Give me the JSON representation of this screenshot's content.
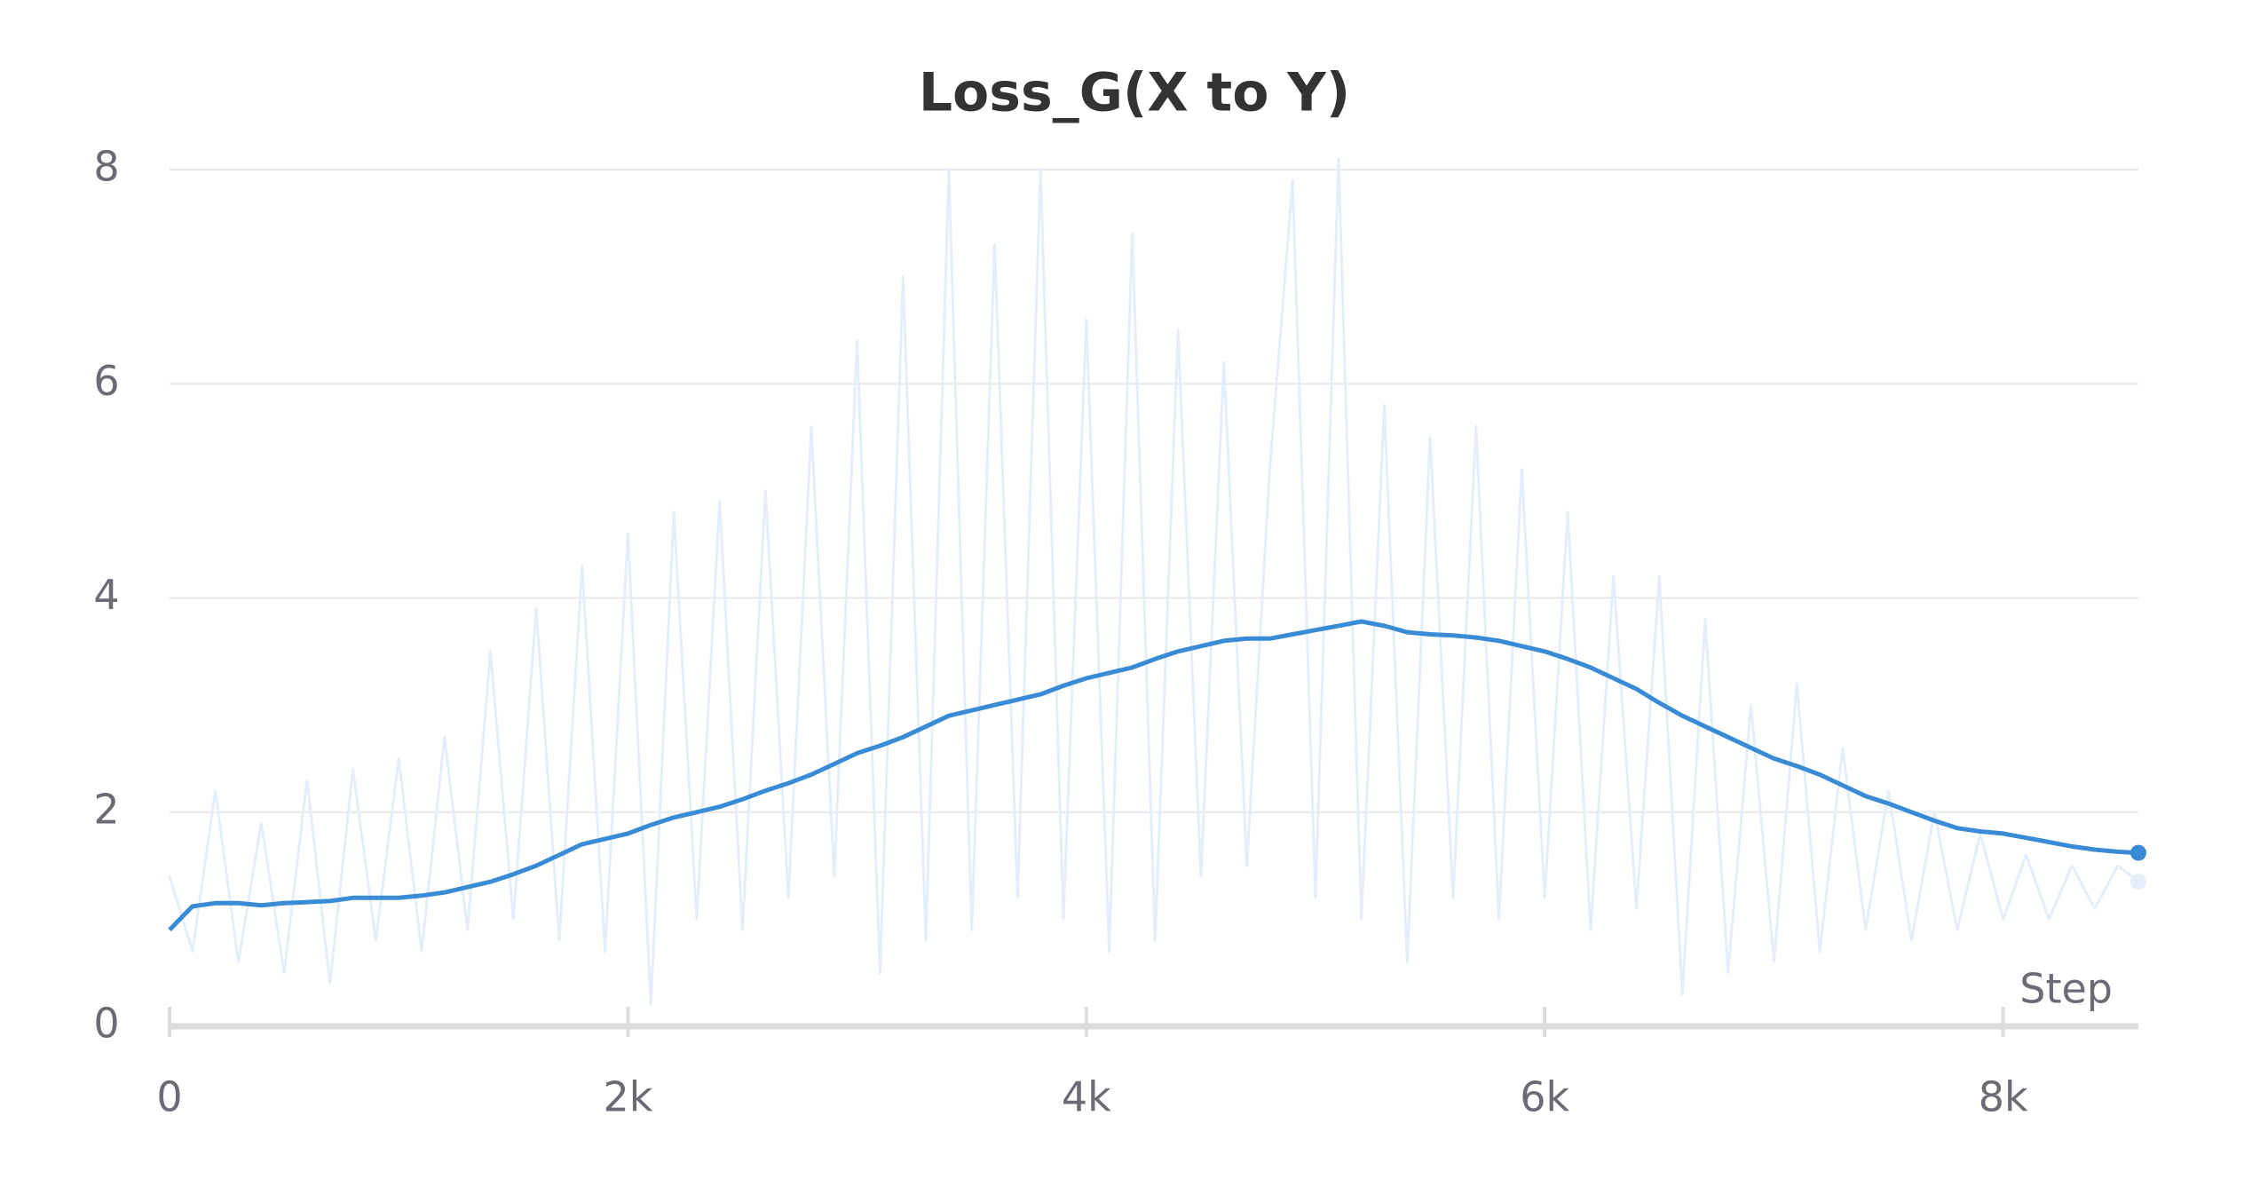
{
  "chart_data": {
    "type": "line",
    "title": "Loss_G(X to Y)",
    "x_label": "Step",
    "x": [
      0,
      100,
      200,
      300,
      400,
      500,
      600,
      700,
      800,
      900,
      1000,
      1100,
      1200,
      1300,
      1400,
      1500,
      1600,
      1700,
      1800,
      1900,
      2000,
      2100,
      2200,
      2300,
      2400,
      2500,
      2600,
      2700,
      2800,
      2900,
      3000,
      3100,
      3200,
      3300,
      3400,
      3500,
      3600,
      3700,
      3800,
      3900,
      4000,
      4100,
      4200,
      4300,
      4400,
      4500,
      4600,
      4700,
      4800,
      4900,
      5000,
      5100,
      5200,
      5300,
      5400,
      5500,
      5600,
      5700,
      5800,
      5900,
      6000,
      6100,
      6200,
      6300,
      6400,
      6500,
      6600,
      6700,
      6800,
      6900,
      7000,
      7100,
      7200,
      7300,
      7400,
      7500,
      7600,
      7700,
      7800,
      7900,
      8000,
      8100,
      8200,
      8300,
      8400,
      8500,
      8590
    ],
    "series": [
      {
        "color": "#e3eefa",
        "values": [
          1.4,
          0.7,
          2.2,
          0.6,
          1.9,
          0.5,
          2.3,
          0.4,
          2.4,
          0.8,
          2.5,
          0.7,
          2.7,
          0.9,
          3.5,
          1.0,
          3.9,
          0.8,
          4.3,
          0.7,
          4.6,
          0.2,
          4.8,
          1.0,
          4.9,
          0.9,
          5.0,
          1.2,
          5.6,
          1.4,
          6.4,
          0.5,
          7.0,
          0.8,
          8.0,
          0.9,
          7.3,
          1.2,
          8.0,
          1.0,
          6.6,
          0.7,
          7.4,
          0.8,
          6.5,
          1.4,
          6.2,
          1.5,
          5.2,
          7.9,
          1.2,
          8.1,
          1.0,
          5.8,
          0.6,
          5.5,
          1.2,
          5.6,
          1.0,
          5.2,
          1.2,
          4.8,
          0.9,
          4.2,
          1.1,
          4.2,
          0.3,
          3.8,
          0.5,
          3.0,
          0.6,
          3.2,
          0.7,
          2.6,
          0.9,
          2.2,
          0.8,
          2.0,
          0.9,
          1.8,
          1.0,
          1.6,
          1.0,
          1.5,
          1.1,
          1.5,
          1.35
        ]
      },
      {
        "color": "#3a8bd6",
        "values": [
          0.9,
          1.12,
          1.15,
          1.15,
          1.13,
          1.15,
          1.16,
          1.17,
          1.2,
          1.2,
          1.2,
          1.22,
          1.25,
          1.3,
          1.35,
          1.42,
          1.5,
          1.6,
          1.7,
          1.75,
          1.8,
          1.88,
          1.95,
          2.0,
          2.05,
          2.12,
          2.2,
          2.27,
          2.35,
          2.45,
          2.55,
          2.62,
          2.7,
          2.8,
          2.9,
          2.95,
          3.0,
          3.05,
          3.1,
          3.18,
          3.25,
          3.3,
          3.35,
          3.43,
          3.5,
          3.55,
          3.6,
          3.62,
          3.62,
          3.66,
          3.7,
          3.74,
          3.78,
          3.74,
          3.68,
          3.66,
          3.65,
          3.63,
          3.6,
          3.55,
          3.5,
          3.43,
          3.35,
          3.25,
          3.15,
          3.02,
          2.9,
          2.8,
          2.7,
          2.6,
          2.5,
          2.43,
          2.35,
          2.25,
          2.15,
          2.08,
          2.0,
          1.92,
          1.85,
          1.82,
          1.8,
          1.76,
          1.72,
          1.68,
          1.65,
          1.63,
          1.62
        ]
      }
    ],
    "xlim": [
      0,
      8590
    ],
    "ylim": [
      0,
      8
    ],
    "xticks": [
      {
        "value": 0,
        "label": "0"
      },
      {
        "value": 2000,
        "label": "2k"
      },
      {
        "value": 4000,
        "label": "4k"
      },
      {
        "value": 6000,
        "label": "6k"
      },
      {
        "value": 8000,
        "label": "8k"
      }
    ],
    "yticks": [
      0,
      2,
      4,
      6,
      8
    ],
    "grid": true
  }
}
